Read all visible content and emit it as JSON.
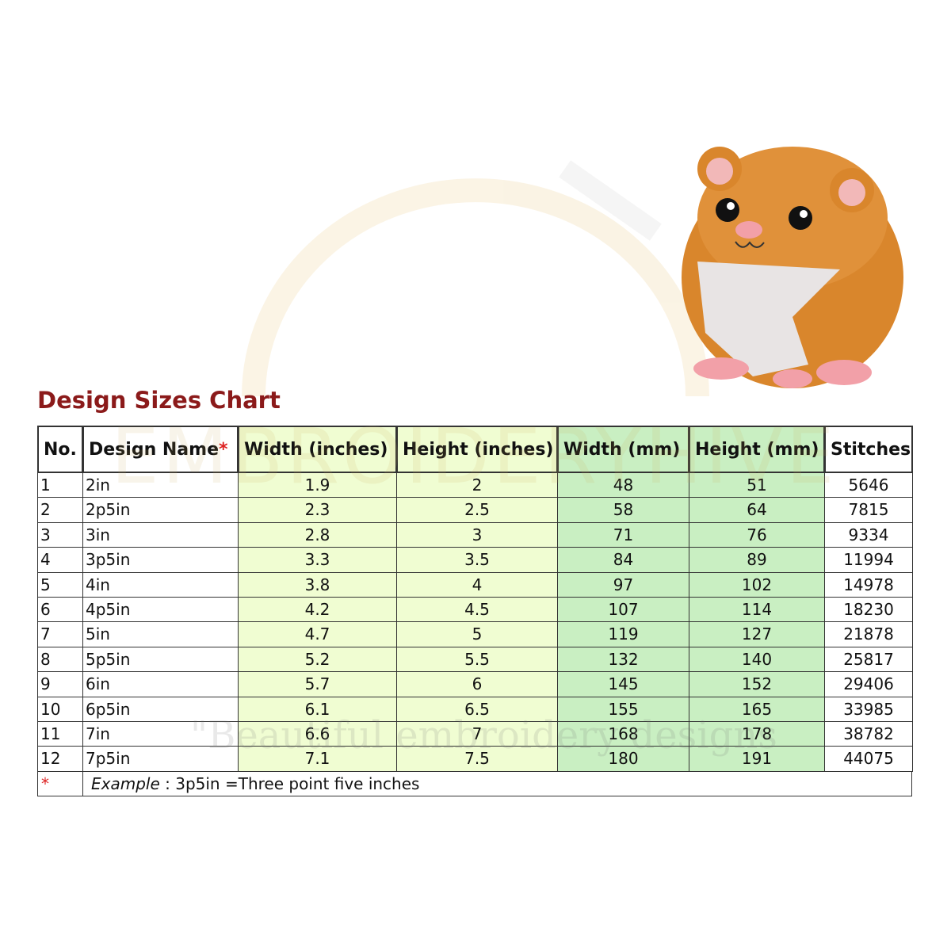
{
  "title": "Design Sizes Chart",
  "watermark": {
    "brand": "EMBROIDERYHIVE",
    "tagline": "\"Beautiful embroidery designs"
  },
  "table": {
    "header": [
      "No.",
      "Design Name",
      "Width (inches)",
      "Height (inches)",
      "Width (mm)",
      "Height (mm)",
      "Stitches"
    ],
    "name_marker": "*",
    "rows": [
      [
        1,
        "2in",
        1.9,
        2,
        48,
        51,
        5646
      ],
      [
        2,
        "2p5in",
        2.3,
        2.5,
        58,
        64,
        7815
      ],
      [
        3,
        "3in",
        2.8,
        3,
        71,
        76,
        9334
      ],
      [
        4,
        "3p5in",
        3.3,
        3.5,
        84,
        89,
        11994
      ],
      [
        5,
        "4in",
        3.8,
        4,
        97,
        102,
        14978
      ],
      [
        6,
        "4p5in",
        4.2,
        4.5,
        107,
        114,
        18230
      ],
      [
        7,
        "5in",
        4.7,
        5,
        119,
        127,
        21878
      ],
      [
        8,
        "5p5in",
        5.2,
        5.5,
        132,
        140,
        25817
      ],
      [
        9,
        "6in",
        5.7,
        6,
        145,
        152,
        29406
      ],
      [
        10,
        "6p5in",
        6.1,
        6.5,
        155,
        165,
        33985
      ],
      [
        11,
        "7in",
        6.6,
        7,
        168,
        178,
        38782
      ],
      [
        12,
        "7p5in",
        7.1,
        7.5,
        180,
        191,
        44075
      ]
    ],
    "note": {
      "marker": "*",
      "label": "Example",
      "text": " : 3p5in =Three point five inches"
    }
  }
}
